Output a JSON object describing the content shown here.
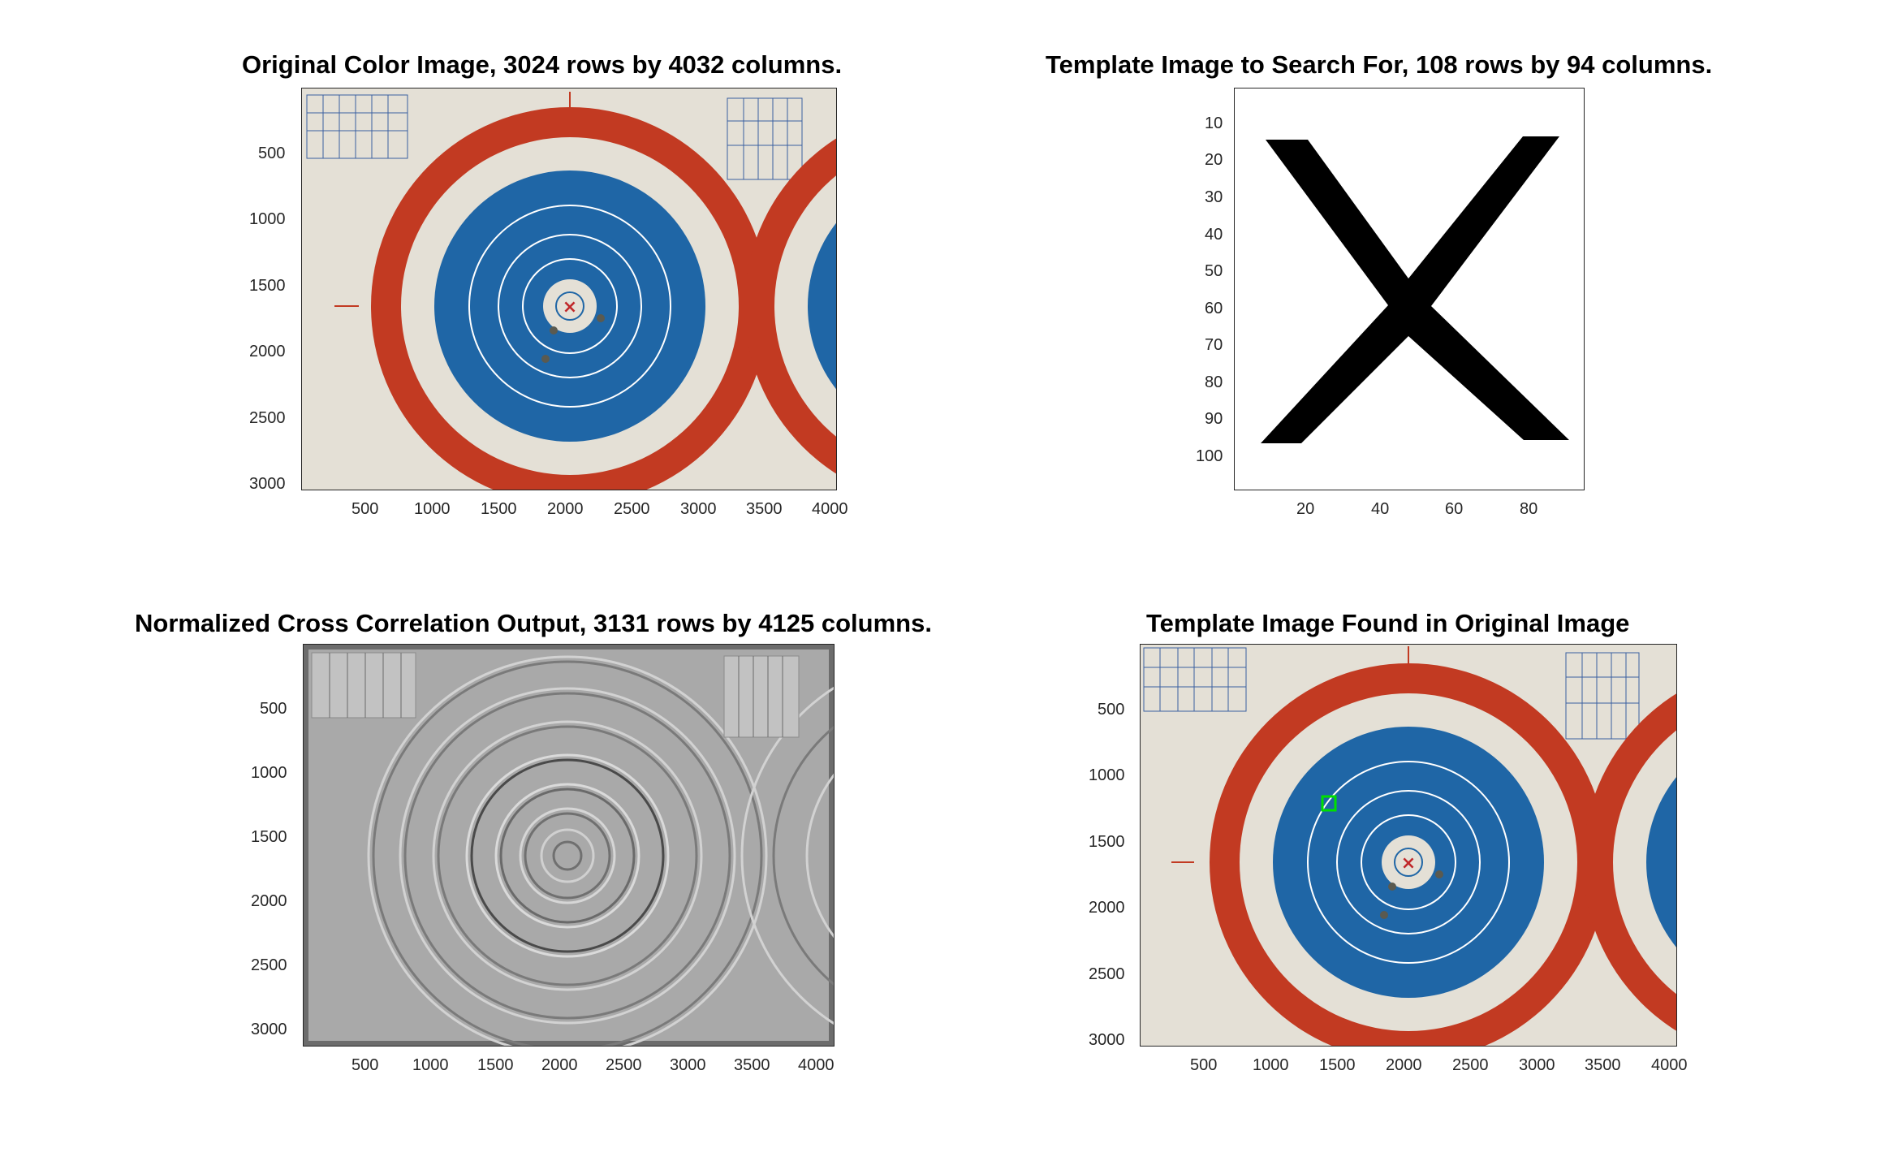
{
  "figure": {
    "panels": [
      {
        "id": "original",
        "title": "Original Color Image, 3024 rows by 4032 columns.",
        "x_ticks": [
          "500",
          "1000",
          "1500",
          "2000",
          "2500",
          "3000",
          "3500",
          "4000"
        ],
        "y_ticks": [
          "500",
          "1000",
          "1500",
          "2000",
          "2500",
          "3000"
        ]
      },
      {
        "id": "template",
        "title": "Template Image to Search For, 108 rows by 94 columns.",
        "x_ticks": [
          "20",
          "40",
          "60",
          "80"
        ],
        "y_ticks": [
          "10",
          "20",
          "30",
          "40",
          "50",
          "60",
          "70",
          "80",
          "90",
          "100"
        ]
      },
      {
        "id": "correlation",
        "title": "Normalized Cross Correlation Output, 3131 rows by 4125 columns.",
        "x_ticks": [
          "500",
          "1000",
          "1500",
          "2000",
          "2500",
          "3000",
          "3500",
          "4000"
        ],
        "y_ticks": [
          "500",
          "1000",
          "1500",
          "2000",
          "2500",
          "3000"
        ]
      },
      {
        "id": "found",
        "title": "Template Image Found in Original Image",
        "x_ticks": [
          "500",
          "1000",
          "1500",
          "2000",
          "2500",
          "3000",
          "3500",
          "4000"
        ],
        "y_ticks": [
          "500",
          "1000",
          "1500",
          "2000",
          "2500",
          "3000"
        ]
      }
    ]
  },
  "colors": {
    "target_red": "#c23a22",
    "target_blue": "#1f66a6",
    "paper": "#e4e0d6",
    "match_box": "#00e000"
  }
}
